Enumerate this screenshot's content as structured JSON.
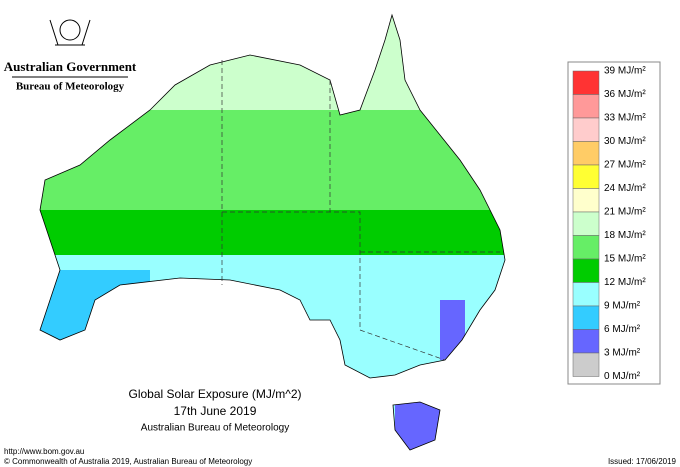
{
  "header": {
    "title": "Australian Government",
    "subtitle": "Bureau of Meteorology"
  },
  "map": {
    "title": "Global Solar Exposure (MJ/m^2)",
    "date": "17th June 2019",
    "source": "Australian Bureau of Meteorology"
  },
  "legend": {
    "labels": [
      "39 MJ/m²",
      "36 MJ/m²",
      "33 MJ/m²",
      "30 MJ/m²",
      "27 MJ/m²",
      "24 MJ/m²",
      "21 MJ/m²",
      "18 MJ/m²",
      "15 MJ/m²",
      "12 MJ/m²",
      "9 MJ/m²",
      "6 MJ/m²",
      "3 MJ/m²",
      "0 MJ/m²"
    ],
    "colors": [
      "#ff3333",
      "#ff9999",
      "#ffcccc",
      "#ffcc66",
      "#ffff33",
      "#ffffcc",
      "#ccffcc",
      "#66ee66",
      "#00cc00",
      "#99ffff",
      "#33ccff",
      "#6666ff",
      "#cccccc"
    ]
  },
  "footer": {
    "url": "http://www.bom.gov.au",
    "copyright": "© Commonwealth of Australia 2019, Australian Bureau of Meteorology",
    "issued": "Issued: 17/06/2019"
  }
}
